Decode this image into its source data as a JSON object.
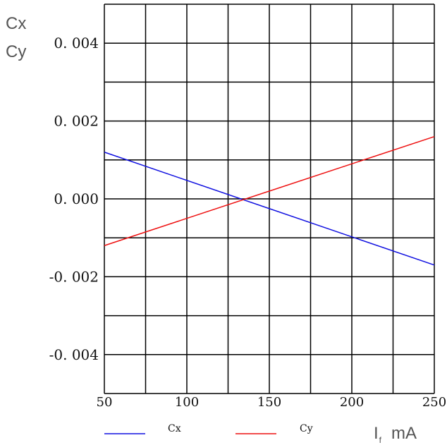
{
  "chart_data": {
    "type": "line",
    "ylabel_lines": [
      "Cx",
      "Cy"
    ],
    "xlabel_main": "I",
    "xlabel_sub": "f",
    "xlabel_unit": "mA",
    "xlim": [
      50,
      250
    ],
    "ylim": [
      -0.005,
      0.005
    ],
    "x_ticks": [
      50,
      100,
      150,
      200,
      250
    ],
    "x_tick_labels": [
      "50",
      "100",
      "150",
      "200",
      "250"
    ],
    "y_ticks": [
      0.004,
      0.002,
      0.0,
      -0.002,
      -0.004
    ],
    "y_tick_labels": [
      "0. 004",
      "0. 002",
      "0. 000",
      "-0. 002",
      "-0. 004"
    ],
    "grid": true,
    "legend_position": "bottom",
    "series": [
      {
        "name": "Cx",
        "color": "#1010e0",
        "x": [
          50,
          250
        ],
        "y": [
          0.0012,
          -0.0017
        ]
      },
      {
        "name": "Cy",
        "color": "#ee1010",
        "x": [
          50,
          250
        ],
        "y": [
          -0.0012,
          0.0016
        ]
      }
    ]
  }
}
